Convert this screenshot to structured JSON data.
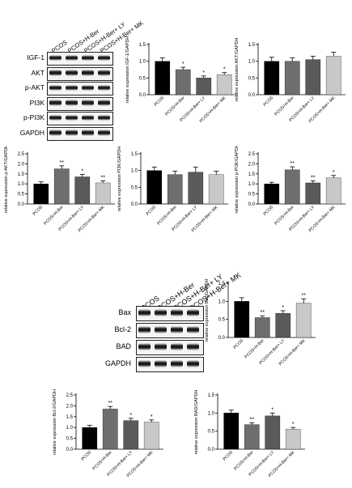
{
  "blot_top": {
    "lanes": [
      "PCOS",
      "PCOS+H-Ber",
      "PCOS+H-Ber+ LY",
      "PCOS+H-Ber+ MK"
    ],
    "rows": [
      "IGF-1",
      "AKT",
      "p-AKT",
      "PI3K",
      "p-PI3K",
      "GAPDH"
    ]
  },
  "blot_bottom": {
    "lanes": [
      "PCOS",
      "PCOS+H-Ber",
      "PCOS+H-Ber+ LY",
      "PCOS+H-Ber+ MK"
    ],
    "rows": [
      "Bax",
      "Bcl-2",
      "BAD",
      "GAPDH"
    ]
  },
  "colors": {
    "PCOS": "#000000",
    "PCOS+H-Ber": "#6e6e6e",
    "PCOS+H-Ber+ LY": "#5a5a5a",
    "PCOS+H-Ber+ MK": "#c8c8c8"
  },
  "chart_data": [
    {
      "type": "bar",
      "ylabel": "relative expression IGF-1/GAPDH",
      "categories": [
        "PCOS",
        "PCOS+H-Ber",
        "PCOS+H-Ber+ LY",
        "PCOS+H-Ber+ MK"
      ],
      "values": [
        1.0,
        0.75,
        0.5,
        0.6
      ],
      "errors": [
        0.1,
        0.07,
        0.06,
        0.06
      ],
      "annotations": [
        "",
        "*",
        "*",
        "*"
      ],
      "ylim": [
        0,
        1.5
      ],
      "yticks": [
        "0.0",
        "0.5",
        "1.0",
        "1.5"
      ]
    },
    {
      "type": "bar",
      "ylabel": "relative expression AKT/GAPDH",
      "categories": [
        "PCOS",
        "PCOS+H-Ber",
        "PCOS+H-Ber+ LY",
        "PCOS+H-Ber+ MK"
      ],
      "values": [
        1.0,
        1.0,
        1.05,
        1.15
      ],
      "errors": [
        0.12,
        0.1,
        0.1,
        0.12
      ],
      "annotations": [
        "",
        "",
        "",
        ""
      ],
      "ylim": [
        0,
        1.5
      ],
      "yticks": [
        "0.0",
        "0.5",
        "1.0",
        "1.5"
      ]
    },
    {
      "type": "bar",
      "ylabel": "relative expression p-AKT/GAPDH",
      "categories": [
        "PCOS",
        "PCOS+H-Ber",
        "PCOS+H-Ber+ LY",
        "PCOS+H-Ber+ MK"
      ],
      "values": [
        1.0,
        1.75,
        1.35,
        1.05
      ],
      "errors": [
        0.1,
        0.15,
        0.12,
        0.1
      ],
      "annotations": [
        "",
        "**",
        "*",
        "**"
      ],
      "ylim": [
        0,
        2.5
      ],
      "yticks": [
        "0.0",
        "0.5",
        "1.0",
        "1.5",
        "2.0",
        "2.5"
      ]
    },
    {
      "type": "bar",
      "ylabel": "relative expression PI3K/GAPDH",
      "categories": [
        "PCOS",
        "PCOS+H-Ber",
        "PCOS+H-Ber+ LY",
        "PCOS+H-Ber+ MK"
      ],
      "values": [
        1.0,
        0.88,
        0.95,
        0.88
      ],
      "errors": [
        0.1,
        0.1,
        0.15,
        0.1
      ],
      "annotations": [
        "",
        "",
        "",
        ""
      ],
      "ylim": [
        0,
        1.5
      ],
      "yticks": [
        "0.0",
        "0.5",
        "1.0",
        "1.5"
      ]
    },
    {
      "type": "bar",
      "ylabel": "relative expression p-PI3K/GAPDH",
      "categories": [
        "PCOS",
        "PCOS+H-Ber",
        "PCOS+H-Ber+ LY",
        "PCOS+H-Ber+ MK"
      ],
      "values": [
        1.0,
        1.7,
        1.05,
        1.3
      ],
      "errors": [
        0.08,
        0.15,
        0.1,
        0.12
      ],
      "annotations": [
        "",
        "**",
        "**",
        "*"
      ],
      "ylim": [
        0,
        2.5
      ],
      "yticks": [
        "0.0",
        "0.5",
        "1.0",
        "1.5",
        "2.0",
        "2.5"
      ]
    },
    {
      "type": "bar",
      "ylabel": "relative expression Bax/GAPDH",
      "categories": [
        "PCOS",
        "PCOS+H-Ber",
        "PCOS+H-Ber+ LY",
        "PCOS+H-Ber+ MK"
      ],
      "values": [
        1.0,
        0.55,
        0.67,
        0.95
      ],
      "errors": [
        0.1,
        0.05,
        0.07,
        0.12
      ],
      "annotations": [
        "",
        "**",
        "*",
        "**"
      ],
      "ylim": [
        0,
        1.5
      ],
      "yticks": [
        "0.0",
        "0.5",
        "1.0",
        "1.5"
      ]
    },
    {
      "type": "bar",
      "ylabel": "relative expression Bcl-2/GAPDH",
      "categories": [
        "PCOS",
        "PCOS+H-Ber",
        "PCOS+H-Ber+ LY",
        "PCOS+H-Ber+ MK"
      ],
      "values": [
        1.0,
        1.85,
        1.32,
        1.25
      ],
      "errors": [
        0.1,
        0.12,
        0.1,
        0.1
      ],
      "annotations": [
        "",
        "**",
        "*",
        "*"
      ],
      "ylim": [
        0,
        2.5
      ],
      "yticks": [
        "0.0",
        "0.5",
        "1.0",
        "1.5",
        "2.0",
        "2.5"
      ]
    },
    {
      "type": "bar",
      "ylabel": "relative expression BAD/GAPDH",
      "categories": [
        "PCOS",
        "PCOS+H-Ber",
        "PCOS+H-Ber+ LY",
        "PCOS+H-Ber+ MK"
      ],
      "values": [
        1.0,
        0.68,
        0.92,
        0.55
      ],
      "errors": [
        0.08,
        0.05,
        0.08,
        0.05
      ],
      "annotations": [
        "",
        "**",
        "*",
        "*"
      ],
      "ylim": [
        0,
        1.5
      ],
      "yticks": [
        "0.0",
        "0.5",
        "1.0",
        "1.5"
      ]
    }
  ]
}
